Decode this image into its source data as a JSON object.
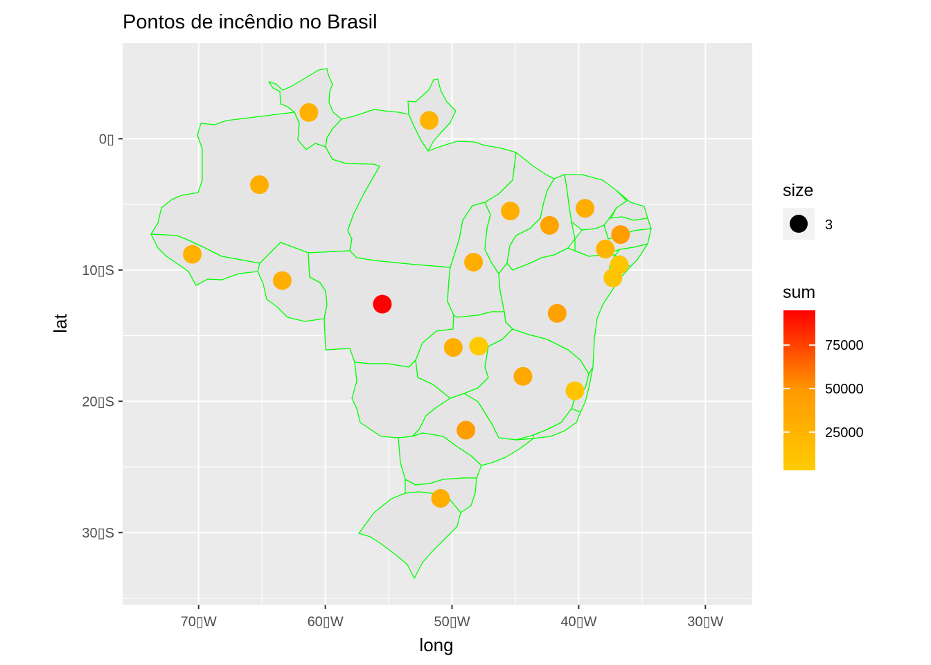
{
  "chart": {
    "title": "Pontos de incêndio no Brasil",
    "xlabel": "long",
    "ylabel": "lat"
  },
  "axes": {
    "x_ticks": [
      {
        "value": -70,
        "label": "70▯W"
      },
      {
        "value": -60,
        "label": "60▯W"
      },
      {
        "value": -50,
        "label": "50▯W"
      },
      {
        "value": -40,
        "label": "40▯W"
      },
      {
        "value": -30,
        "label": "30▯W"
      }
    ],
    "y_ticks": [
      {
        "value": 0,
        "label": "0▯"
      },
      {
        "value": -10,
        "label": "10▯S"
      },
      {
        "value": -20,
        "label": "20▯S"
      },
      {
        "value": -30,
        "label": "30▯S"
      }
    ],
    "xlim": [
      -76,
      -26.3
    ],
    "ylim": [
      -35.5,
      7.3
    ]
  },
  "legend": {
    "size_title": "size",
    "size_label": "3",
    "color_title": "sum",
    "color_ticks": [
      {
        "value": 75000,
        "label": "75000"
      },
      {
        "value": 50000,
        "label": "50000"
      },
      {
        "value": 25000,
        "label": "25000"
      }
    ],
    "color_range": [
      3000,
      95000
    ],
    "color_low": "#FFCC00",
    "color_high": "#FF0000"
  },
  "colors": {
    "panel_bg": "#EBEBEB",
    "grid": "#FFFFFF",
    "state_fill": "#E5E5E5",
    "state_border": "#00FF00"
  },
  "chart_data": {
    "type": "scatter",
    "x_field": "long",
    "y_field": "lat",
    "points": [
      {
        "long": -61.3,
        "lat": 2.0,
        "sum": 28000
      },
      {
        "long": -51.8,
        "lat": 1.4,
        "sum": 24000
      },
      {
        "long": -65.2,
        "lat": -3.5,
        "sum": 30000
      },
      {
        "long": -70.5,
        "lat": -8.8,
        "sum": 27000
      },
      {
        "long": -63.4,
        "lat": -10.8,
        "sum": 29000
      },
      {
        "long": -55.5,
        "lat": -12.6,
        "sum": 95000
      },
      {
        "long": -48.3,
        "lat": -9.4,
        "sum": 30000
      },
      {
        "long": -45.4,
        "lat": -5.5,
        "sum": 30000
      },
      {
        "long": -42.3,
        "lat": -6.6,
        "sum": 40000
      },
      {
        "long": -39.5,
        "lat": -5.3,
        "sum": 31000
      },
      {
        "long": -36.7,
        "lat": -7.3,
        "sum": 45000
      },
      {
        "long": -37.9,
        "lat": -8.4,
        "sum": 25000
      },
      {
        "long": -36.8,
        "lat": -9.6,
        "sum": 8000
      },
      {
        "long": -37.3,
        "lat": -10.6,
        "sum": 10000
      },
      {
        "long": -41.7,
        "lat": -13.3,
        "sum": 42000
      },
      {
        "long": -49.9,
        "lat": -15.9,
        "sum": 30000
      },
      {
        "long": -47.9,
        "lat": -15.8,
        "sum": 5000
      },
      {
        "long": -44.4,
        "lat": -18.1,
        "sum": 35000
      },
      {
        "long": -40.3,
        "lat": -19.2,
        "sum": 10000
      },
      {
        "long": -48.9,
        "lat": -22.2,
        "sum": 45000
      },
      {
        "long": -50.9,
        "lat": -27.4,
        "sum": 30000
      }
    ]
  }
}
